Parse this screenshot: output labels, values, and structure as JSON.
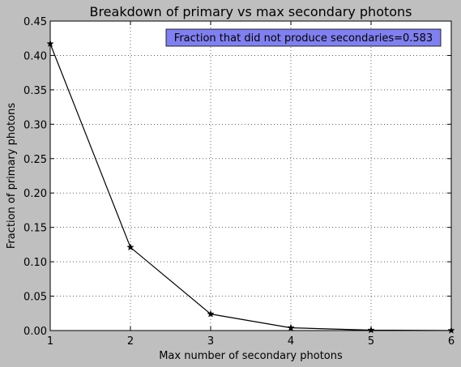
{
  "chart_data": {
    "type": "line",
    "title": "Breakdown of primary vs max secondary photons",
    "xlabel": "Max number of secondary photons",
    "ylabel": "Fraction of primary photons",
    "xlim": [
      1,
      6
    ],
    "ylim": [
      0,
      0.45
    ],
    "xticks": [
      1,
      2,
      3,
      4,
      5,
      6
    ],
    "yticks": [
      0.0,
      0.05,
      0.1,
      0.15,
      0.2,
      0.25,
      0.3,
      0.35,
      0.4,
      0.45
    ],
    "xtick_labels": [
      "1",
      "2",
      "3",
      "4",
      "5",
      "6"
    ],
    "ytick_labels": [
      "0.00",
      "0.05",
      "0.10",
      "0.15",
      "0.20",
      "0.25",
      "0.30",
      "0.35",
      "0.40",
      "0.45"
    ],
    "grid": true,
    "series": [
      {
        "x": [
          1,
          2,
          3,
          4,
          5,
          6
        ],
        "y": [
          0.417,
          0.121,
          0.024,
          0.004,
          0.0006,
          0.0001
        ],
        "color": "#000000",
        "marker": "star"
      }
    ],
    "annotation": {
      "text": "Fraction that did not produce secondaries=0.583",
      "background": "#8080f0",
      "placement": "top-right"
    },
    "colors": {
      "figure_background": "#bfbfbf",
      "plot_background": "#ffffff"
    }
  }
}
